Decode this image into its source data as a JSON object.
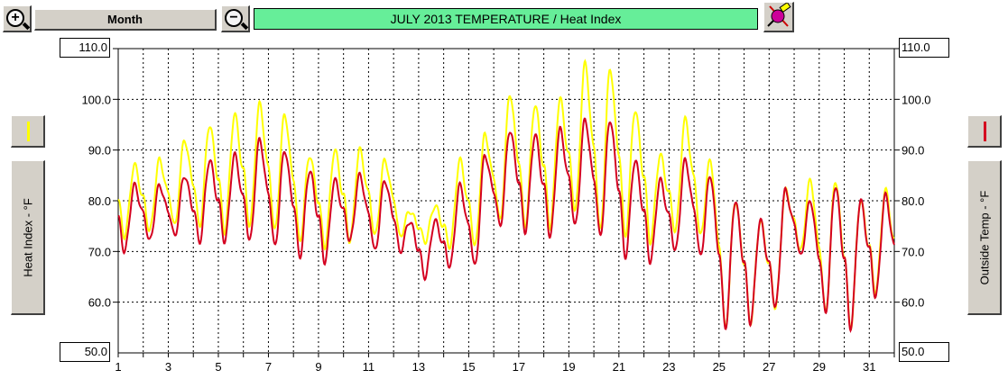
{
  "toolbar": {
    "zoom_in_icon": "zoom-in-icon",
    "zoom_out_icon": "zoom-out-icon",
    "period_label": "Month",
    "title": "JULY  2013   TEMPERATURE / Heat Index",
    "extra_icon": "plot-tool-icon"
  },
  "left_axis": {
    "label": "Heat Index - °F",
    "max_box": "110.0",
    "min_box": "50.0",
    "legend_color": "#ffff00"
  },
  "right_axis": {
    "label": "Outside Temp - °F",
    "max_box": "110.0",
    "min_box": "50.0",
    "legend_color": "#d40020"
  },
  "chart_data": {
    "type": "line",
    "title": "JULY  2013   TEMPERATURE / Heat Index",
    "xlim": [
      1,
      32
    ],
    "ylim": [
      50,
      110
    ],
    "x_ticks": [
      1,
      3,
      5,
      7,
      9,
      11,
      13,
      15,
      17,
      19,
      21,
      23,
      25,
      27,
      29,
      31
    ],
    "y_ticks_left": [
      "110.0",
      "100.0",
      "90.0",
      "80.0",
      "70.0",
      "60.0"
    ],
    "y_ticks_right": [
      "110.0",
      "100.0",
      "90.0",
      "80.0",
      "70.0",
      "60.0"
    ],
    "grid": true,
    "days": [
      1,
      2,
      3,
      4,
      5,
      6,
      7,
      8,
      9,
      10,
      11,
      12,
      13,
      14,
      15,
      16,
      17,
      18,
      19,
      20,
      21,
      22,
      23,
      24,
      25,
      26,
      27,
      28,
      29,
      30,
      31
    ],
    "series": [
      {
        "axis": "left",
        "color": "#ffff00",
        "daily_min": [
          73,
          74,
          75,
          75,
          74,
          75,
          74,
          72,
          71,
          72,
          73,
          73,
          72,
          71,
          71,
          76,
          75,
          75,
          78,
          74,
          73,
          72,
          74,
          73,
          55,
          56,
          59,
          70,
          58,
          55,
          62
        ],
        "daily_max": [
          87,
          88,
          92,
          95,
          97,
          99,
          97,
          89,
          90,
          90,
          88,
          78,
          79,
          88,
          93,
          101,
          99,
          100,
          107,
          106,
          98,
          89,
          96,
          88,
          80,
          76,
          82,
          84,
          84,
          80,
          82
        ]
      },
      {
        "axis": "right",
        "color": "#d40020",
        "daily_min": [
          70,
          72,
          73,
          72,
          72,
          72,
          71,
          69,
          68,
          72,
          70,
          70,
          65,
          67,
          67,
          75,
          74,
          73,
          75,
          73,
          69,
          68,
          70,
          69,
          55,
          56,
          59,
          69,
          58,
          55,
          61
        ],
        "daily_max": [
          83,
          83,
          85,
          88,
          89,
          92,
          90,
          86,
          84,
          85,
          84,
          76,
          76,
          83,
          89,
          94,
          93,
          94,
          96,
          96,
          88,
          84,
          88,
          85,
          80,
          76,
          82,
          80,
          83,
          80,
          81
        ]
      }
    ]
  }
}
